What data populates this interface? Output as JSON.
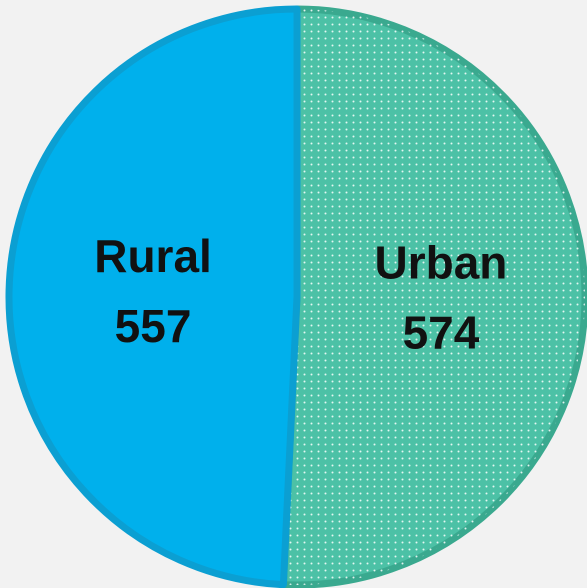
{
  "chart_data": {
    "type": "pie",
    "categories": [
      "Urban",
      "Rural"
    ],
    "values": [
      574,
      557
    ],
    "colors": [
      "#4cc1a6",
      "#00b0ec"
    ],
    "borders": [
      "#3aa98f",
      "#0b9fd2"
    ],
    "hatch": [
      "dots",
      "none"
    ],
    "start_angle": 0,
    "direction": "clockwise"
  }
}
